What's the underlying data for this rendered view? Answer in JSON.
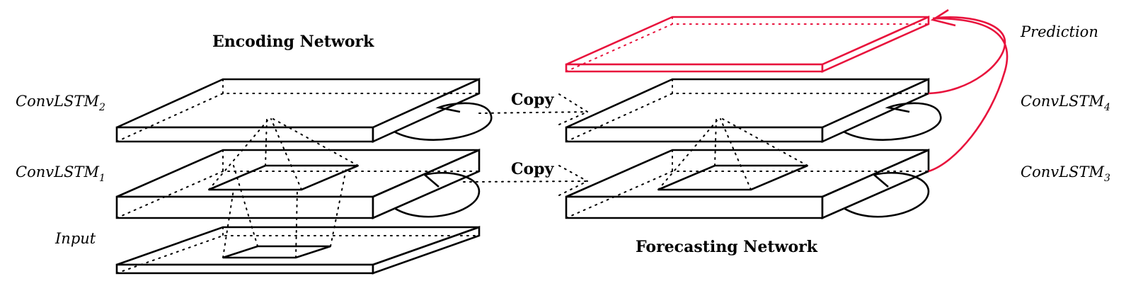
{
  "titles": {
    "encoding": "Encoding Network",
    "forecasting": "Forecasting Network"
  },
  "layers": {
    "convlstm2": {
      "base": "ConvLSTM",
      "sub": "2"
    },
    "convlstm1": {
      "base": "ConvLSTM",
      "sub": "1"
    },
    "input": {
      "base": "Input"
    },
    "convlstm4": {
      "base": "ConvLSTM",
      "sub": "4"
    },
    "convlstm3": {
      "base": "ConvLSTM",
      "sub": "3"
    },
    "prediction": {
      "base": "Prediction"
    }
  },
  "copy_labels": [
    "Copy",
    "Copy"
  ],
  "colors": {
    "prediction": "#e8123c",
    "lines": "#000000"
  }
}
